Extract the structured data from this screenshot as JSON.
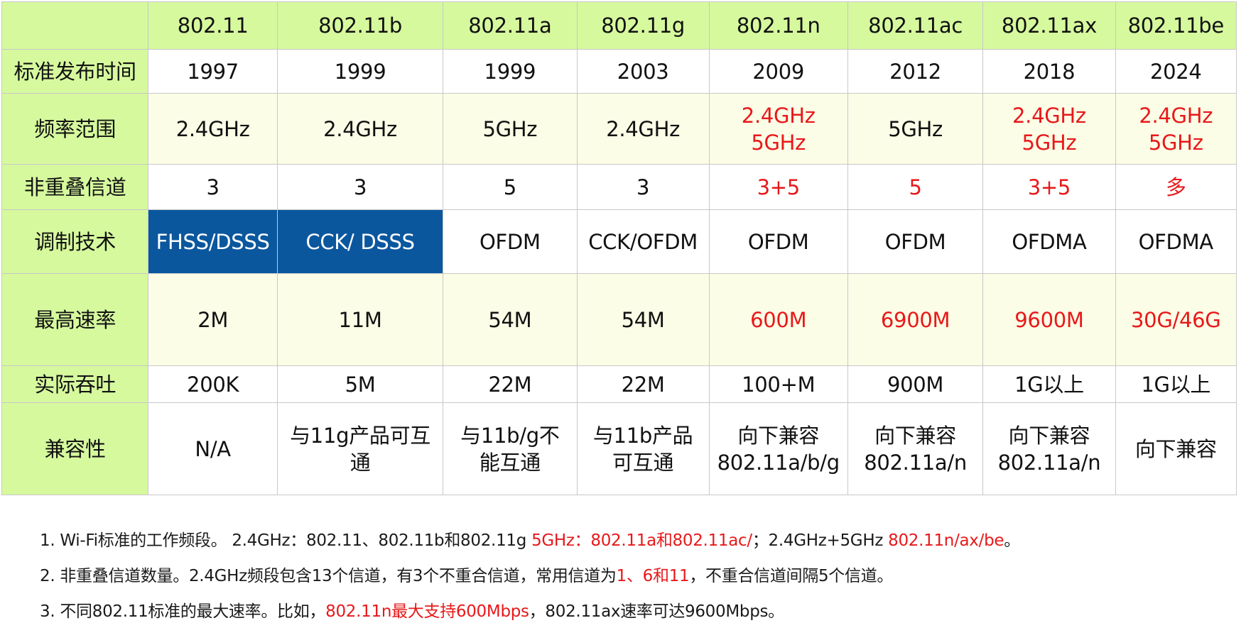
{
  "table": {
    "header": [
      "",
      "802.11",
      "802.11b",
      "802.11a",
      "802.11g",
      "802.11n",
      "802.11ac",
      "802.11ax",
      "802.11be"
    ],
    "rows": [
      {
        "label": "标准发布时间",
        "cells": [
          "1997",
          "1999",
          "1999",
          "2003",
          "2009",
          "2012",
          "2018",
          "2024"
        ]
      },
      {
        "label": "频率范围",
        "cells": [
          "2.4GHz",
          "2.4GHz",
          "5GHz",
          "2.4GHz",
          "2.4GHz\n5GHz",
          "5GHz",
          "2.4GHz\n5GHz",
          "2.4GHz\n5GHz"
        ]
      },
      {
        "label": "非重叠信道",
        "cells": [
          "3",
          "3",
          "5",
          "3",
          "3+5",
          "5",
          "3+5",
          "多"
        ]
      },
      {
        "label": "调制技术",
        "cells": [
          "FHSS/DSSS",
          "CCK/ DSSS",
          "OFDM",
          "CCK/OFDM",
          "OFDM",
          "OFDM",
          "OFDMA",
          "OFDMA"
        ]
      },
      {
        "label": "最高速率",
        "cells": [
          "2M",
          "11M",
          "54M",
          "54M",
          "600M",
          "6900M",
          "9600M",
          "30G/46G"
        ]
      },
      {
        "label": "实际吞吐",
        "cells": [
          "200K",
          "5M",
          "22M",
          "22M",
          "100+M",
          "900M",
          "1G以上",
          "1G以上"
        ]
      },
      {
        "label": "兼容性",
        "cells": [
          "N/A",
          "与11g产品可互\n通",
          "与11b/g不\n能互通",
          "与11b产品\n可互通",
          "向下兼容\n802.11a/b/g",
          "向下兼容\n802.11a/n",
          "向下兼容\n802.11a/n",
          "向下兼容"
        ]
      }
    ]
  },
  "notes": {
    "n1": {
      "a": "1. Wi-Fi标准的工作频段。 2.4GHz：802.11、802.11b和802.11g ",
      "b": "5GHz：802.11a和802.11ac/",
      "c": "；2.4GHz+5GHz ",
      "d": "802.11n/ax/be",
      "e": "。"
    },
    "n2": {
      "a": "2. 非重叠信道数量。2.4GHz频段包含13个信道，有3个不重合信道，常用信道为",
      "b": "1、6和11",
      "c": "，不重合信道间隔5个信道。"
    },
    "n3": {
      "a": "3. 不同802.11标准的最大速率。比如，",
      "b": "802.11n最大支持600Mbps",
      "c": "，802.11ax速率可达9600Mbps。"
    }
  },
  "colors": {
    "header_green": "#d6f99e",
    "band_yellow": "#fbfde6",
    "highlight_blue": "#0a579e",
    "emphasis_red": "#e8181a"
  }
}
